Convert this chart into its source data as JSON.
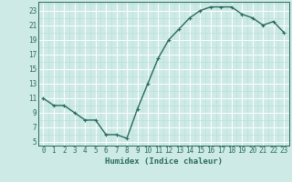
{
  "x": [
    0,
    1,
    2,
    3,
    4,
    5,
    6,
    7,
    8,
    9,
    10,
    11,
    12,
    13,
    14,
    15,
    16,
    17,
    18,
    19,
    20,
    21,
    22,
    23
  ],
  "y": [
    11,
    10,
    10,
    9,
    8,
    8,
    6,
    6,
    5.5,
    9.5,
    13,
    16.5,
    19,
    20.5,
    22,
    23,
    23.5,
    23.5,
    23.5,
    22.5,
    22,
    21,
    21.5,
    20
  ],
  "line_color": "#2a6b5e",
  "marker": "+",
  "bg_color": "#cdeae6",
  "grid_major_color": "#ffffff",
  "grid_minor_color": "#b8dcd8",
  "xlabel": "Humidex (Indice chaleur)",
  "xlim_min": -0.5,
  "xlim_max": 23.5,
  "ylim_min": 4.5,
  "ylim_max": 24.2,
  "yticks": [
    5,
    7,
    9,
    11,
    13,
    15,
    17,
    19,
    21,
    23
  ],
  "xticks": [
    0,
    1,
    2,
    3,
    4,
    5,
    6,
    7,
    8,
    9,
    10,
    11,
    12,
    13,
    14,
    15,
    16,
    17,
    18,
    19,
    20,
    21,
    22,
    23
  ],
  "xlabel_fontsize": 6.5,
  "tick_fontsize": 5.5,
  "line_width": 1.0,
  "marker_size": 3.5,
  "marker_edge_width": 0.8
}
